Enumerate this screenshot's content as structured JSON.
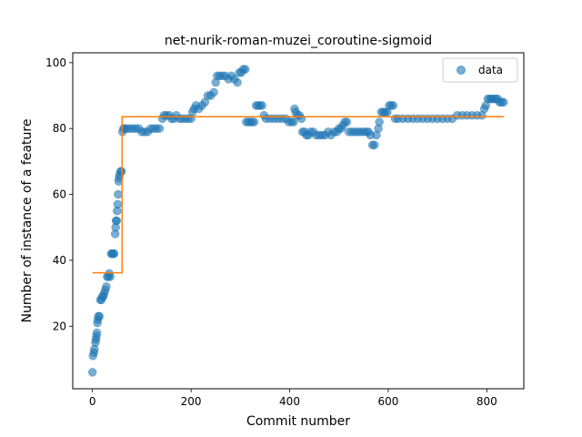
{
  "chart_data": {
    "type": "scatter",
    "title": "net-nurik-roman-muzei_coroutine-sigmoid",
    "xlabel": "Commit number",
    "ylabel": "Number of instance of a feature",
    "xlim": [
      -40,
      875
    ],
    "ylim": [
      1,
      103
    ],
    "xticks": [
      0,
      200,
      400,
      600,
      800
    ],
    "yticks": [
      20,
      40,
      60,
      80,
      100
    ],
    "grid": false,
    "legend": {
      "position": "top-right",
      "entries": [
        "data"
      ]
    },
    "colors": {
      "data": "#1f77b4",
      "fit": "#ff7f0e"
    },
    "series": [
      {
        "name": "data",
        "kind": "scatter",
        "points": [
          [
            0,
            6
          ],
          [
            1,
            11
          ],
          [
            3,
            12
          ],
          [
            4,
            13
          ],
          [
            6,
            15
          ],
          [
            7,
            16
          ],
          [
            8,
            17
          ],
          [
            9,
            18
          ],
          [
            10,
            21
          ],
          [
            11,
            22
          ],
          [
            12,
            23
          ],
          [
            14,
            23
          ],
          [
            16,
            28
          ],
          [
            18,
            28
          ],
          [
            20,
            29
          ],
          [
            22,
            29
          ],
          [
            24,
            30
          ],
          [
            26,
            31
          ],
          [
            28,
            32
          ],
          [
            30,
            35
          ],
          [
            32,
            35
          ],
          [
            34,
            36
          ],
          [
            36,
            35
          ],
          [
            38,
            42
          ],
          [
            40,
            42
          ],
          [
            42,
            42
          ],
          [
            44,
            42
          ],
          [
            46,
            48
          ],
          [
            47,
            50
          ],
          [
            48,
            52
          ],
          [
            49,
            52
          ],
          [
            50,
            55
          ],
          [
            51,
            57
          ],
          [
            52,
            60
          ],
          [
            53,
            64
          ],
          [
            54,
            65
          ],
          [
            55,
            66
          ],
          [
            57,
            67
          ],
          [
            59,
            67
          ],
          [
            61,
            79
          ],
          [
            63,
            80
          ],
          [
            65,
            80
          ],
          [
            70,
            80
          ],
          [
            76,
            80
          ],
          [
            82,
            80
          ],
          [
            88,
            80
          ],
          [
            94,
            80
          ],
          [
            100,
            79
          ],
          [
            106,
            79
          ],
          [
            112,
            79
          ],
          [
            118,
            80
          ],
          [
            124,
            80
          ],
          [
            130,
            80
          ],
          [
            136,
            80
          ],
          [
            142,
            83
          ],
          [
            145,
            84
          ],
          [
            150,
            84
          ],
          [
            156,
            84
          ],
          [
            160,
            83
          ],
          [
            165,
            83
          ],
          [
            170,
            84
          ],
          [
            176,
            83
          ],
          [
            182,
            83
          ],
          [
            188,
            83
          ],
          [
            194,
            83
          ],
          [
            200,
            83
          ],
          [
            203,
            85
          ],
          [
            206,
            86
          ],
          [
            210,
            87
          ],
          [
            216,
            86
          ],
          [
            222,
            87
          ],
          [
            228,
            88
          ],
          [
            234,
            90
          ],
          [
            240,
            90
          ],
          [
            246,
            91
          ],
          [
            250,
            94
          ],
          [
            253,
            96
          ],
          [
            258,
            96
          ],
          [
            264,
            96
          ],
          [
            270,
            96
          ],
          [
            276,
            95
          ],
          [
            282,
            96
          ],
          [
            288,
            95
          ],
          [
            294,
            94
          ],
          [
            298,
            97
          ],
          [
            302,
            97
          ],
          [
            306,
            98
          ],
          [
            310,
            98
          ],
          [
            312,
            82
          ],
          [
            316,
            82
          ],
          [
            320,
            82
          ],
          [
            324,
            82
          ],
          [
            328,
            82
          ],
          [
            332,
            87
          ],
          [
            336,
            87
          ],
          [
            340,
            87
          ],
          [
            344,
            87
          ],
          [
            348,
            84
          ],
          [
            352,
            83
          ],
          [
            360,
            83
          ],
          [
            368,
            83
          ],
          [
            376,
            83
          ],
          [
            384,
            83
          ],
          [
            392,
            83
          ],
          [
            398,
            82
          ],
          [
            404,
            82
          ],
          [
            408,
            82
          ],
          [
            410,
            86
          ],
          [
            412,
            85
          ],
          [
            416,
            84
          ],
          [
            420,
            84
          ],
          [
            424,
            83
          ],
          [
            426,
            79
          ],
          [
            430,
            79
          ],
          [
            434,
            78
          ],
          [
            438,
            78
          ],
          [
            442,
            79
          ],
          [
            448,
            79
          ],
          [
            454,
            78
          ],
          [
            460,
            78
          ],
          [
            466,
            78
          ],
          [
            472,
            78
          ],
          [
            478,
            79
          ],
          [
            484,
            78
          ],
          [
            490,
            79
          ],
          [
            496,
            79
          ],
          [
            500,
            80
          ],
          [
            504,
            80
          ],
          [
            508,
            81
          ],
          [
            512,
            82
          ],
          [
            516,
            82
          ],
          [
            520,
            79
          ],
          [
            526,
            79
          ],
          [
            532,
            79
          ],
          [
            538,
            79
          ],
          [
            544,
            79
          ],
          [
            550,
            79
          ],
          [
            556,
            79
          ],
          [
            560,
            79
          ],
          [
            564,
            78
          ],
          [
            568,
            75
          ],
          [
            572,
            75
          ],
          [
            576,
            78
          ],
          [
            580,
            80
          ],
          [
            582,
            82
          ],
          [
            586,
            85
          ],
          [
            590,
            85
          ],
          [
            594,
            85
          ],
          [
            598,
            85
          ],
          [
            602,
            87
          ],
          [
            606,
            87
          ],
          [
            610,
            87
          ],
          [
            614,
            83
          ],
          [
            620,
            83
          ],
          [
            630,
            83
          ],
          [
            640,
            83
          ],
          [
            650,
            83
          ],
          [
            660,
            83
          ],
          [
            670,
            83
          ],
          [
            680,
            83
          ],
          [
            690,
            83
          ],
          [
            700,
            83
          ],
          [
            710,
            83
          ],
          [
            720,
            83
          ],
          [
            730,
            83
          ],
          [
            740,
            84
          ],
          [
            750,
            84
          ],
          [
            760,
            84
          ],
          [
            770,
            84
          ],
          [
            780,
            84
          ],
          [
            790,
            84
          ],
          [
            795,
            86
          ],
          [
            798,
            87
          ],
          [
            802,
            89
          ],
          [
            806,
            89
          ],
          [
            810,
            89
          ],
          [
            814,
            89
          ],
          [
            818,
            89
          ],
          [
            822,
            89
          ],
          [
            826,
            88
          ],
          [
            830,
            88
          ],
          [
            834,
            88
          ]
        ]
      },
      {
        "name": "",
        "kind": "step",
        "points": [
          [
            0,
            36.2
          ],
          [
            60,
            36.2
          ],
          [
            60,
            83.6
          ],
          [
            835,
            83.6
          ]
        ]
      }
    ]
  }
}
